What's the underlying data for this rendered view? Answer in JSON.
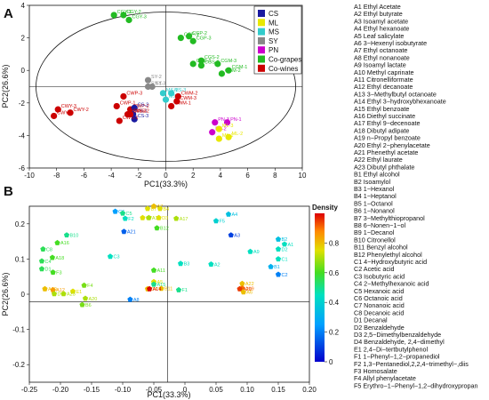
{
  "chart_data": [
    {
      "type": "scatter",
      "panel": "A",
      "xlabel": "PC1(33.3%)",
      "ylabel": "PC2(26.6%)",
      "xlim": [
        -10,
        10
      ],
      "ylim": [
        -6,
        4
      ],
      "xticks": [
        "-10",
        "-8",
        "-6",
        "-4",
        "-2",
        "0",
        "2",
        "4",
        "6",
        "8",
        "10"
      ],
      "yticks": [
        "-6",
        "-4",
        "-2",
        "0",
        "2",
        "4"
      ],
      "legend": {
        "placement": "top-right",
        "items": [
          {
            "label": "CS",
            "color": "#1a1aa0"
          },
          {
            "label": "ML",
            "color": "#e8e800"
          },
          {
            "label": "MS",
            "color": "#33cccc"
          },
          {
            "label": "SY",
            "color": "#888888"
          },
          {
            "label": "PN",
            "color": "#cc00cc"
          },
          {
            "label": "Co-grapes",
            "color": "#22bb22"
          },
          {
            "label": "Co-wines",
            "color": "#cc0000"
          }
        ]
      },
      "points": [
        {
          "label": "CGY-1",
          "x": -3.8,
          "y": 3.4,
          "color": "#22bb22"
        },
        {
          "label": "CGY-2",
          "x": -3.1,
          "y": 3.4,
          "color": "#22bb22"
        },
        {
          "label": "CGY-3",
          "x": -2.7,
          "y": 3.1,
          "color": "#22bb22"
        },
        {
          "label": "CGP-1",
          "x": 1.1,
          "y": 2.0,
          "color": "#22bb22"
        },
        {
          "label": "CGP-2",
          "x": 1.7,
          "y": 2.1,
          "color": "#22bb22"
        },
        {
          "label": "CGP-3",
          "x": 2.0,
          "y": 1.8,
          "color": "#22bb22"
        },
        {
          "label": "CGS-2",
          "x": 2.6,
          "y": 0.6,
          "color": "#22bb22"
        },
        {
          "label": "CGS-1",
          "x": 2.0,
          "y": 0.4,
          "color": "#22bb22"
        },
        {
          "label": "CGS-3",
          "x": 2.6,
          "y": 0.3,
          "color": "#22bb22"
        },
        {
          "label": "CGM-3",
          "x": 3.8,
          "y": 0.4,
          "color": "#22bb22"
        },
        {
          "label": "CGM-1",
          "x": 4.6,
          "y": 0.0,
          "color": "#22bb22"
        },
        {
          "label": "CGM-2",
          "x": 4.1,
          "y": -0.2,
          "color": "#22bb22"
        },
        {
          "label": "SY-2",
          "x": -1.3,
          "y": -0.6,
          "color": "#888888"
        },
        {
          "label": "SY-1",
          "x": -1.3,
          "y": -1.0,
          "color": "#888888"
        },
        {
          "label": "SY-3",
          "x": -1.0,
          "y": -1.0,
          "color": "#888888"
        },
        {
          "label": "MS-1",
          "x": -0.2,
          "y": -1.4,
          "color": "#33cccc"
        },
        {
          "label": "MS-3",
          "x": 0.4,
          "y": -1.4,
          "color": "#33cccc"
        },
        {
          "label": "MS-2",
          "x": 0.0,
          "y": -1.8,
          "color": "#33cccc"
        },
        {
          "label": "CWM-2",
          "x": 0.9,
          "y": -1.6,
          "color": "#cc0000"
        },
        {
          "label": "CWM-3",
          "x": 0.8,
          "y": -1.9,
          "color": "#cc0000"
        },
        {
          "label": "CWM-1",
          "x": 0.4,
          "y": -2.2,
          "color": "#cc0000"
        },
        {
          "label": "CWY-3",
          "x": -7.9,
          "y": -2.4,
          "color": "#cc0000"
        },
        {
          "label": "CWY-2",
          "x": -7.0,
          "y": -2.6,
          "color": "#cc0000"
        },
        {
          "label": "CWY-1",
          "x": -8.2,
          "y": -2.8,
          "color": "#cc0000"
        },
        {
          "label": "CWP-3",
          "x": -3.1,
          "y": -1.6,
          "color": "#cc0000"
        },
        {
          "label": "CWP-1",
          "x": -3.6,
          "y": -2.2,
          "color": "#cc0000"
        },
        {
          "label": "CWP-2",
          "x": -2.6,
          "y": -2.4,
          "color": "#cc0000"
        },
        {
          "label": "CS-2",
          "x": -2.3,
          "y": -2.3,
          "color": "#1a1aa0"
        },
        {
          "label": "CS-1",
          "x": -2.4,
          "y": -2.7,
          "color": "#1a1aa0"
        },
        {
          "label": "CS-3",
          "x": -2.3,
          "y": -3.0,
          "color": "#1a1aa0"
        },
        {
          "label": "CWS-3",
          "x": -2.8,
          "y": -2.7,
          "color": "#cc0000"
        },
        {
          "label": "CWS-2",
          "x": -2.6,
          "y": -2.7,
          "color": "#cc0000"
        },
        {
          "label": "CWS-1",
          "x": -3.4,
          "y": -3.1,
          "color": "#cc0000"
        },
        {
          "label": "PN-3",
          "x": 3.6,
          "y": -3.2,
          "color": "#cc00cc"
        },
        {
          "label": "PN-1",
          "x": 4.5,
          "y": -3.2,
          "color": "#cc00cc"
        },
        {
          "label": "PN-2",
          "x": 3.4,
          "y": -3.8,
          "color": "#cc00cc"
        },
        {
          "label": "ML-3",
          "x": 3.9,
          "y": -3.6,
          "color": "#e8e800"
        },
        {
          "label": "ML-1",
          "x": 3.9,
          "y": -4.2,
          "color": "#e8e800"
        },
        {
          "label": "ML-2",
          "x": 4.6,
          "y": -4.1,
          "color": "#e8e800"
        }
      ]
    },
    {
      "type": "scatter",
      "panel": "B",
      "xlabel": "PC1(33.3%)",
      "ylabel": "PC2(26.6%)",
      "xlim": [
        -0.25,
        0.2
      ],
      "ylim": [
        -0.25,
        0.25
      ],
      "xticks": [
        "-0.25",
        "-0.20",
        "-0.15",
        "-0.10",
        "-0.05",
        "0",
        "0.05",
        "0.10",
        "0.15",
        "0.20"
      ],
      "yticks": [
        "-0.2",
        "-0.1",
        "0",
        "0.1",
        "0.2"
      ],
      "colorbar": {
        "title": "Density",
        "min": 0,
        "max": 1,
        "ticks": [
          "0",
          "0.2",
          "0.4",
          "0.6",
          "0.8"
        ]
      },
      "points": [
        {
          "label": "C6",
          "x": -0.112,
          "y": 0.235,
          "d": 0.25
        },
        {
          "label": "C5",
          "x": -0.1,
          "y": 0.23,
          "d": 0.5
        },
        {
          "label": "F2",
          "x": -0.096,
          "y": 0.215,
          "d": 0.45
        },
        {
          "label": "B7",
          "x": -0.06,
          "y": 0.243,
          "d": 0.75
        },
        {
          "label": "A7",
          "x": -0.05,
          "y": 0.25,
          "d": 0.8
        },
        {
          "label": "B4",
          "x": -0.04,
          "y": 0.243,
          "d": 0.75
        },
        {
          "label": "C7",
          "x": -0.068,
          "y": 0.217,
          "d": 0.75
        },
        {
          "label": "A13",
          "x": -0.058,
          "y": 0.217,
          "d": 0.7
        },
        {
          "label": "D3",
          "x": -0.042,
          "y": 0.217,
          "d": 0.75
        },
        {
          "label": "A17",
          "x": -0.014,
          "y": 0.215,
          "d": 0.7
        },
        {
          "label": "B12",
          "x": -0.045,
          "y": 0.188,
          "d": 0.6
        },
        {
          "label": "A4",
          "x": 0.07,
          "y": 0.227,
          "d": 0.35
        },
        {
          "label": "F5",
          "x": 0.05,
          "y": 0.208,
          "d": 0.4
        },
        {
          "label": "A21",
          "x": -0.098,
          "y": 0.178,
          "d": 0.15
        },
        {
          "label": "A3",
          "x": 0.074,
          "y": 0.168,
          "d": 0.1
        },
        {
          "label": "B10",
          "x": -0.19,
          "y": 0.168,
          "d": 0.5
        },
        {
          "label": "A16",
          "x": -0.205,
          "y": 0.146,
          "d": 0.6
        },
        {
          "label": "C8",
          "x": -0.228,
          "y": 0.128,
          "d": 0.55
        },
        {
          "label": "B2",
          "x": 0.15,
          "y": 0.156,
          "d": 0.35
        },
        {
          "label": "A1",
          "x": 0.16,
          "y": 0.142,
          "d": 0.45
        },
        {
          "label": "D2",
          "x": 0.15,
          "y": 0.128,
          "d": 0.45
        },
        {
          "label": "A9",
          "x": 0.105,
          "y": 0.121,
          "d": 0.45
        },
        {
          "label": "C3",
          "x": -0.12,
          "y": 0.107,
          "d": 0.45
        },
        {
          "label": "A18",
          "x": -0.213,
          "y": 0.104,
          "d": 0.6
        },
        {
          "label": "C4",
          "x": -0.23,
          "y": 0.094,
          "d": 0.55
        },
        {
          "label": "C1",
          "x": 0.15,
          "y": 0.1,
          "d": 0.45
        },
        {
          "label": "B3",
          "x": -0.007,
          "y": 0.087,
          "d": 0.45
        },
        {
          "label": "A2",
          "x": 0.042,
          "y": 0.085,
          "d": 0.45
        },
        {
          "label": "B1",
          "x": 0.138,
          "y": 0.078,
          "d": 0.3
        },
        {
          "label": "D1",
          "x": -0.23,
          "y": 0.072,
          "d": 0.55
        },
        {
          "label": "A11",
          "x": -0.05,
          "y": 0.068,
          "d": 0.6
        },
        {
          "label": "F3",
          "x": -0.212,
          "y": 0.062,
          "d": 0.6
        },
        {
          "label": "C2",
          "x": 0.15,
          "y": 0.056,
          "d": 0.2
        },
        {
          "label": "A5",
          "x": -0.05,
          "y": 0.035,
          "d": 0.75
        },
        {
          "label": "A15",
          "x": -0.05,
          "y": 0.028,
          "d": 0.5
        },
        {
          "label": "F4",
          "x": -0.162,
          "y": 0.025,
          "d": 0.65
        },
        {
          "label": "A22",
          "x": 0.092,
          "y": 0.03,
          "d": 0.8
        },
        {
          "label": "A10",
          "x": -0.225,
          "y": 0.015,
          "d": 0.8
        },
        {
          "label": "A12",
          "x": -0.212,
          "y": 0.012,
          "d": 0.85
        },
        {
          "label": "D4",
          "x": -0.06,
          "y": 0.015,
          "d": 0.8
        },
        {
          "label": "B11",
          "x": -0.038,
          "y": 0.016,
          "d": 0.8
        },
        {
          "label": "A14",
          "x": -0.057,
          "y": 0.015,
          "d": 1.0
        },
        {
          "label": "F1",
          "x": -0.01,
          "y": 0.012,
          "d": 0.5
        },
        {
          "label": "A19",
          "x": 0.092,
          "y": 0.017,
          "d": 0.9
        },
        {
          "label": "A20d",
          "x": 0.088,
          "y": 0.015,
          "d": 0.95
        },
        {
          "label": "A6",
          "x": 0.094,
          "y": 0.006,
          "d": 0.8
        },
        {
          "label": "E1",
          "x": -0.18,
          "y": 0.008,
          "d": 0.75
        },
        {
          "label": "A23",
          "x": -0.195,
          "y": 0.001,
          "d": 0.7
        },
        {
          "label": "D5",
          "x": -0.21,
          "y": 0.001,
          "d": 0.7
        },
        {
          "label": "A20",
          "x": -0.16,
          "y": -0.012,
          "d": 0.7
        },
        {
          "label": "A8",
          "x": -0.088,
          "y": -0.015,
          "d": 0.2
        },
        {
          "label": "B6",
          "x": -0.165,
          "y": -0.03,
          "d": 0.65
        }
      ]
    }
  ],
  "panels": {
    "a": "A",
    "b": "B"
  },
  "compound_list": [
    "A1 Ethyl Acetate",
    "A2 Ethyl butyrate",
    "A3 Isoamyl acetate",
    "A4 Ethyl hexanoate",
    "A5 Leaf salicylate",
    "A6 3−Hexenyl isobutyrate",
    "A7 Ethyl octanoate",
    "A8 Ethyl nonanoate",
    "A9 Isoamyl lactate",
    "A10 Methyl caprinate",
    "A11 Citronelliformate",
    "A12 Ethyl decanoate",
    "A13 3−Methylbutyl octanoate",
    "A14 Ethyl 3−hydroxybhexanoate",
    "A15 Ethyl benzoate",
    "A16 Diethyl succinate",
    "A17 Ethyl 9−decenoate",
    "A18 Dibutyl adipate",
    "A19 n−Propyl benzoate",
    "A20 Ethyl 2−phenylacetate",
    "A21 Phenethyl acetate",
    "A22 Ethyl laurate",
    "A23 Dibutyl phthalate",
    "B1 Ethyl alcohol",
    "B2 Isoamylol",
    "B3 1−Hexanol",
    "B4 1−Heptanol",
    "B5 1−Octanol",
    "B6 1−Nonanol",
    "B7 3−Methylthiopropanol",
    "B8 6−Nonen−1−ol",
    "B9 1−Decanol",
    "B10 Citronellol",
    "B11 Benzyl alcohol",
    "B12 Phenylethyl alcohol",
    "C1 4−Hydroxybutyric acid",
    "C2 Acetic acid",
    "C3 Isobutyric acid",
    "C4 2−Methylhexanoic acid",
    "C5 Hexanoic acid",
    "C6 Octanoic acid",
    "C7 Nonanoic acid",
    "C8 Decanoic acid",
    "D1 Decanal",
    "D2 Benzaldehyde",
    "D3 2,5−Dimethylbenzaldehyde",
    "D4 Benzaldehyde, 2,4−dimethyl",
    "E1 2,4−Di−tertbutylphenol",
    "F1 1−Phenyl−1,2−propanediol",
    "F2 1,3−Pentanediol,2,2,4−trimethyl−,diis",
    "F3 Homosalate",
    "F4 Allyl phenylacetate",
    "F5 Erythro−1−Phenyl−1,2−dihydroxypropan"
  ]
}
